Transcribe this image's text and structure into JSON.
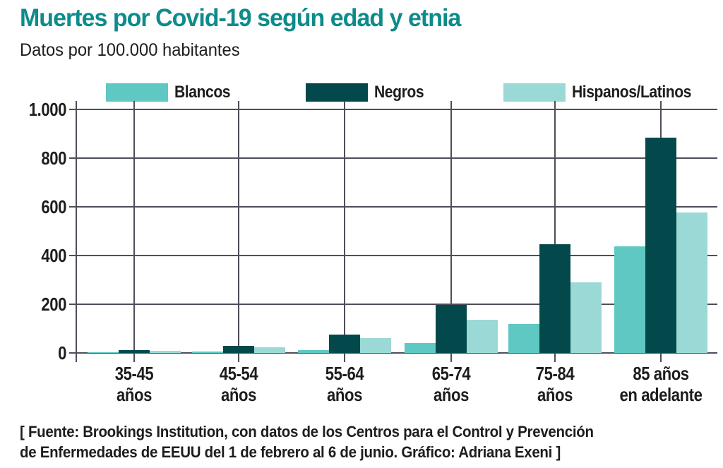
{
  "header": {
    "title": "Muertes por Covid-19 según edad y etnia",
    "subtitle": "Datos por 100.000 habitantes"
  },
  "colors": {
    "title_teal": "#0E8B8B",
    "text": "#1D1D1B",
    "grid": "#4E4E5A",
    "background": "#FFFFFF"
  },
  "chart_data": {
    "type": "bar",
    "title": "Muertes por Covid-19 según edad y etnia",
    "subtitle": "Datos por 100.000 habitantes",
    "xlabel": "",
    "ylabel": "",
    "ylim": [
      0,
      1000
    ],
    "grid": true,
    "legend_position": "top",
    "y_ticks": [
      {
        "label": "1.000",
        "value": 1000
      },
      {
        "label": "800",
        "value": 800
      },
      {
        "label": "600",
        "value": 600
      },
      {
        "label": "400",
        "value": 400
      },
      {
        "label": "200",
        "value": 200
      },
      {
        "label": "0",
        "value": 0
      }
    ],
    "categories": [
      {
        "line1": "35-45",
        "line2": "años"
      },
      {
        "line1": "45-54",
        "line2": "años"
      },
      {
        "line1": "55-64",
        "line2": "años"
      },
      {
        "line1": "65-74",
        "line2": "años"
      },
      {
        "line1": "75-84",
        "line2": "años"
      },
      {
        "line1": "85 años",
        "line2": "en adelante"
      }
    ],
    "series": [
      {
        "name": "Blancos",
        "color": "#5FC8C3",
        "values": [
          4,
          7,
          12,
          40,
          120,
          437
        ]
      },
      {
        "name": "Negros",
        "color": "#03494C",
        "values": [
          13,
          28,
          76,
          197,
          445,
          885
        ]
      },
      {
        "name": "Hispanos/Latinos",
        "color": "#9BD9D6",
        "values": [
          9,
          22,
          60,
          135,
          290,
          577
        ]
      }
    ]
  },
  "footer": {
    "line1": "[ Fuente: Brookings Institution, con datos de los Centros para el Control y Prevención",
    "line2": "de Enfermedades de EEUU del 1 de febrero al 6 de junio. Gráfico: Adriana Exeni ]"
  }
}
